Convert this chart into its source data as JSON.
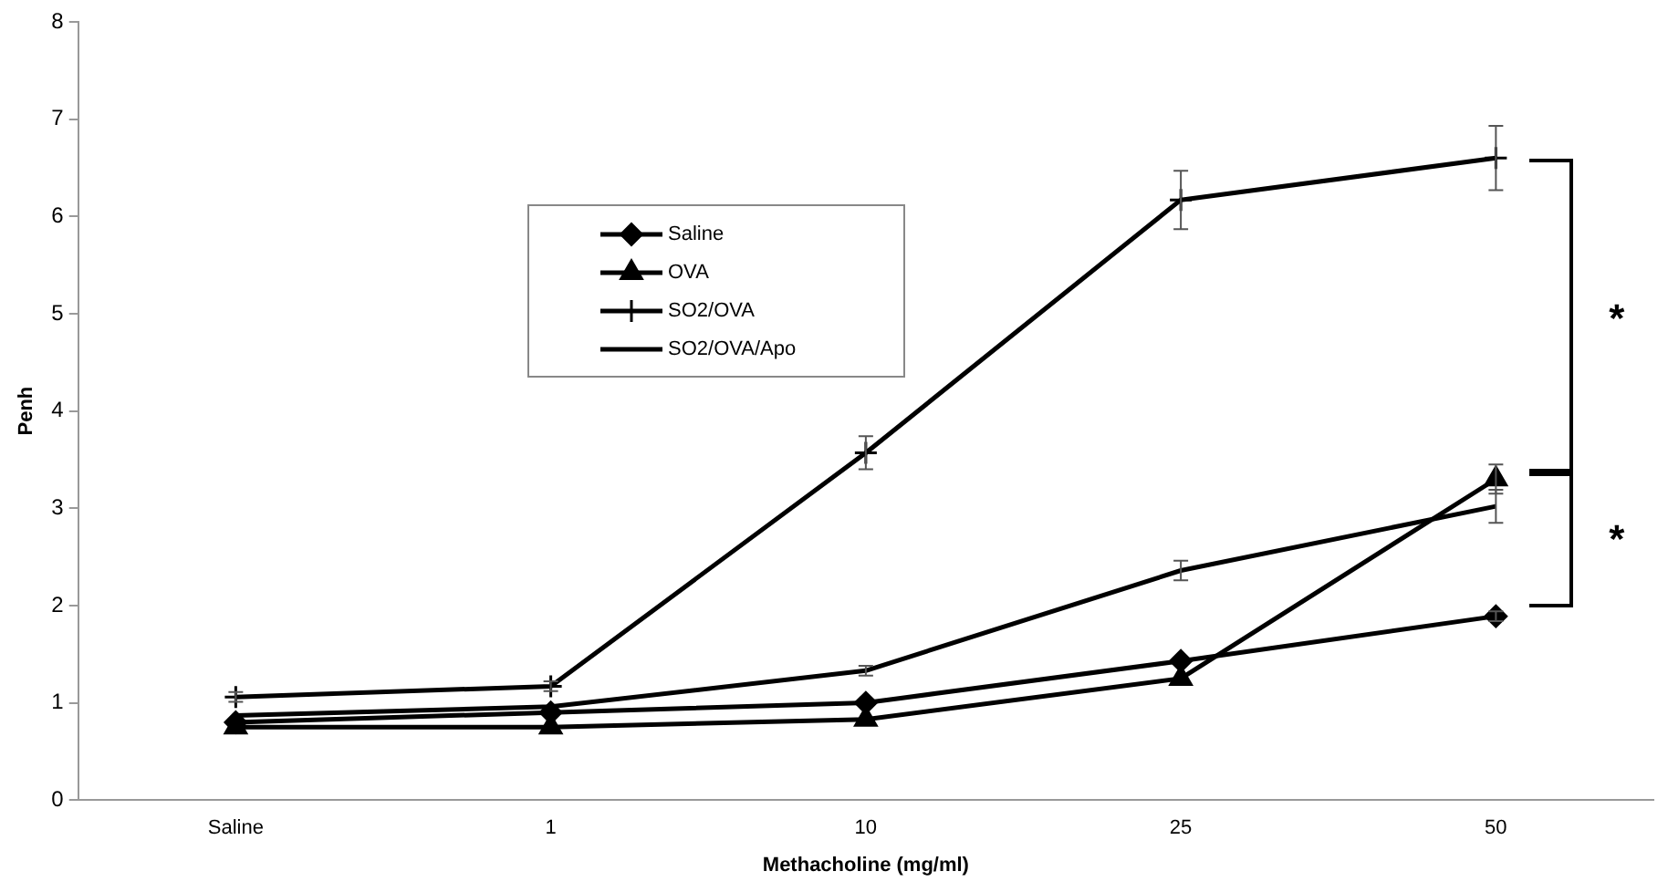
{
  "chart_data": {
    "type": "line",
    "xlabel": "Methacholine (mg/ml)",
    "ylabel": "Penh",
    "categories": [
      "Saline",
      "1",
      "10",
      "25",
      "50"
    ],
    "ylim": [
      0,
      8
    ],
    "yticks": [
      0,
      1,
      2,
      3,
      4,
      5,
      6,
      7,
      8
    ],
    "grid": false,
    "legend": "top left",
    "line_style": "solid",
    "series": [
      {
        "name": "Saline",
        "color": "#000000",
        "marker": "diamond",
        "values": [
          0.8,
          0.9,
          1.0,
          1.43,
          1.89
        ],
        "errors": [
          null,
          null,
          null,
          null,
          0.05
        ]
      },
      {
        "name": "OVA",
        "color": "#000000",
        "marker": "triangle",
        "values": [
          0.75,
          0.75,
          0.83,
          1.25,
          3.3
        ],
        "errors": [
          null,
          null,
          null,
          null,
          0.15
        ]
      },
      {
        "name": "SO2/OVA",
        "color": "#000000",
        "marker": "cross",
        "values": [
          1.06,
          1.17,
          3.57,
          6.17,
          6.6
        ],
        "errors": [
          0.05,
          0.05,
          0.17,
          0.3,
          0.33
        ]
      },
      {
        "name": "SO2/OVA/Apo",
        "color": "#000000",
        "marker": "none",
        "values": [
          0.87,
          0.96,
          1.33,
          2.36,
          3.02
        ],
        "errors": [
          null,
          null,
          0.05,
          0.1,
          0.17
        ]
      }
    ],
    "annotations": [
      "*",
      "*"
    ]
  }
}
